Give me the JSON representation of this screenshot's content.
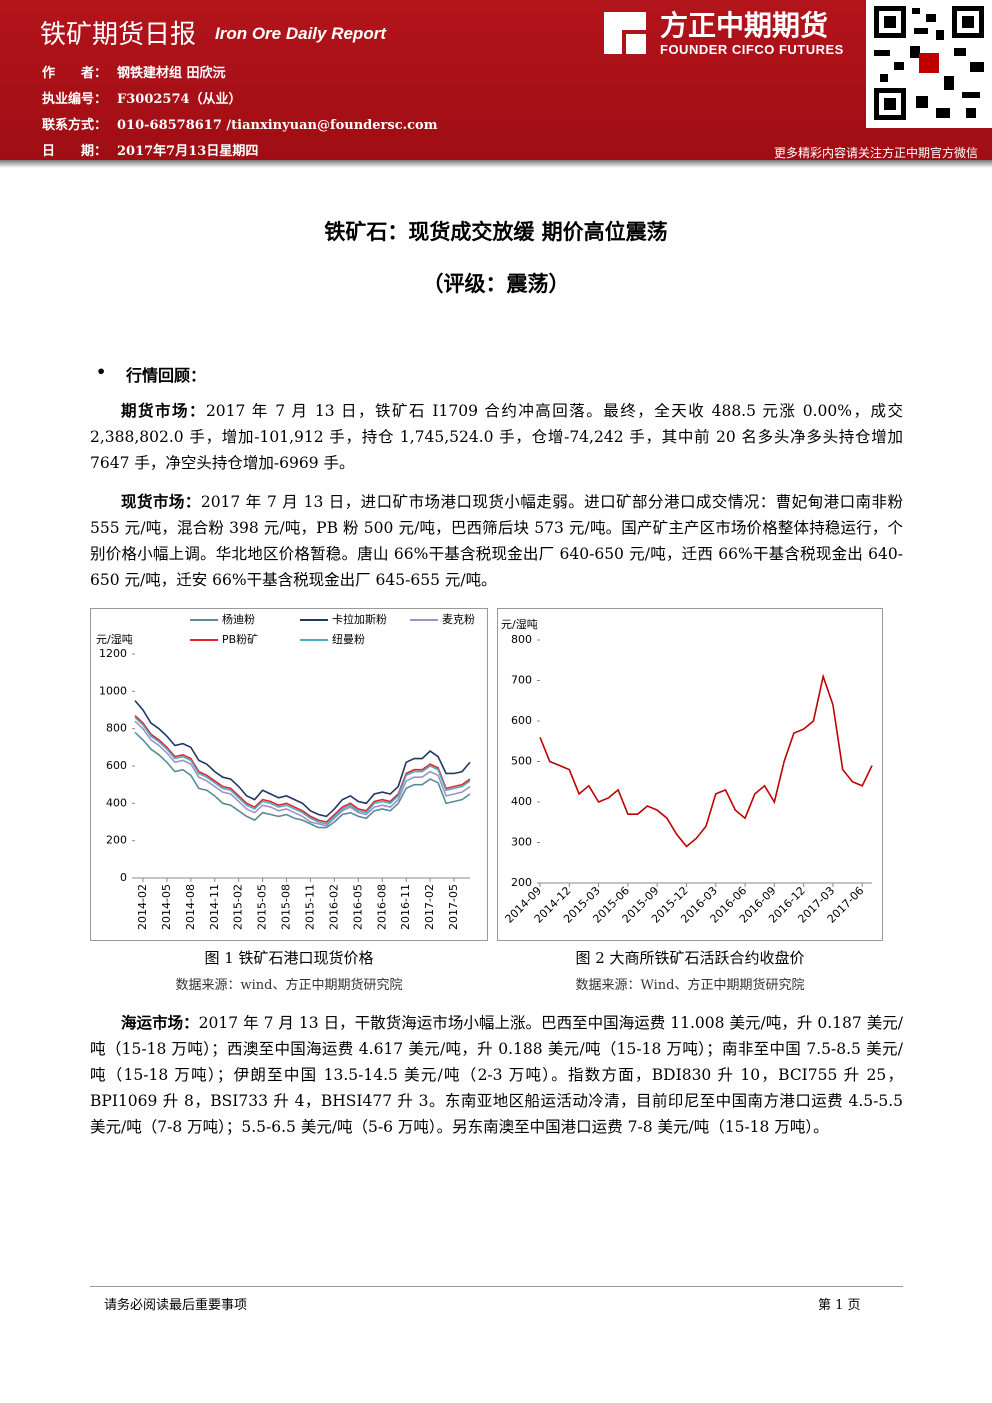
{
  "header": {
    "title": "铁矿期货日报",
    "subtitle": "Iron Ore Daily Report",
    "fields": [
      {
        "label": "作　　者：",
        "value": "钢铁建材组 田欣沅"
      },
      {
        "label": "执业编号：",
        "value": "F3002574（从业）"
      },
      {
        "label": "联系方式：",
        "value": "010-68578617 /tianxinyuan@foundersc.com"
      },
      {
        "label": "日　　期：",
        "value": "2017年7月13日星期四"
      }
    ],
    "logo_cn": "方正中期期货",
    "logo_en": "FOUNDER CIFCO FUTURES",
    "wechat_note": "更多精彩内容请关注方正中期官方微信"
  },
  "body": {
    "title": "铁矿石：现货成交放缓 期价高位震荡",
    "rating": "（评级：震荡）",
    "section": "行情回顾：",
    "paragraphs": [
      {
        "lead": "期货市场：",
        "text": "2017 年 7 月 13 日，铁矿石 I1709 合约冲高回落。最终，全天收 488.5 元涨 0.00%，成交 2,388,802.0 手，增加-101,912 手，持仓 1,745,524.0 手，仓增-74,242 手，其中前 20 名多头净多头持仓增加 7647 手，净空头持仓增加-6969 手。"
      },
      {
        "lead": "现货市场：",
        "text": "2017 年 7 月 13 日，进口矿市场港口现货小幅走弱。进口矿部分港口成交情况：曹妃甸港口南非粉 555 元/吨，混合粉 398 元/吨，PB 粉 500 元/吨，巴西筛后块 573 元/吨。国产矿主产区市场价格整体持稳运行，个别价格小幅上调。华北地区价格暂稳。唐山 66%干基含税现金出厂 640-650 元/吨，迁西 66%干基含税现金出 640-650 元/吨，迁安 66%干基含税现金出厂 645-655 元/吨。"
      },
      {
        "lead": "海运市场：",
        "text": "2017 年 7 月 13 日，干散货海运市场小幅上涨。巴西至中国海运费 11.008 美元/吨，升 0.187 美元/吨（15-18 万吨）；西澳至中国海运费 4.617 美元/吨，升 0.188 美元/吨（15-18 万吨）；南非至中国 7.5-8.5 美元/吨（15-18 万吨）；伊朗至中国 13.5-14.5 美元/吨（2-3 万吨）。指数方面，BDI830 升 10，BCI755 升 25，BPI1069 升 8，BSI733 升 4，BHSI477 升 3。东南亚地区船运活动冷清，目前印尼至中国南方港口运费 4.5-5.5 美元/吨（7-8 万吨）；5.5-6.5 美元/吨（5-6 万吨）。另东南澳至中国港口运费 7-8 美元/吨（15-18 万吨）。"
      }
    ],
    "captions": [
      {
        "title": "图 1 铁矿石港口现货价格",
        "source": "数据来源：wind、方正中期期货研究院"
      },
      {
        "title": "图 2 大商所铁矿石活跃合约收盘价",
        "source": "数据来源：Wind、方正中期期货研究院"
      }
    ]
  },
  "footer": {
    "note": "请务必阅读最后重要事项",
    "page": "第 1 页"
  },
  "chart_data": [
    {
      "type": "line",
      "y_label": "元/湿吨",
      "grid": false,
      "categories": [
        null,
        "2014-02",
        null,
        null,
        "2014-05",
        null,
        null,
        "2014-08",
        null,
        null,
        "2014-11",
        null,
        null,
        "2015-02",
        null,
        null,
        "2015-05",
        null,
        null,
        "2015-08",
        null,
        null,
        "2015-11",
        null,
        null,
        "2016-02",
        null,
        null,
        "2016-05",
        null,
        null,
        "2016-08",
        null,
        null,
        "2016-11",
        null,
        null,
        "2017-02",
        null,
        null,
        "2017-05",
        null,
        null
      ],
      "ylim": [
        0,
        1200
      ],
      "yticks": [
        0,
        200,
        400,
        600,
        800,
        1000,
        1200
      ],
      "series": [
        {
          "name": "杨迪粉",
          "color": "#5a8a9c",
          "values": [
            780,
            740,
            690,
            660,
            620,
            570,
            580,
            550,
            480,
            470,
            440,
            400,
            390,
            360,
            330,
            310,
            350,
            340,
            330,
            340,
            320,
            310,
            290,
            270,
            270,
            300,
            340,
            350,
            330,
            320,
            360,
            370,
            360,
            400,
            480,
            500,
            500,
            530,
            510,
            400,
            410,
            420,
            450
          ]
        },
        {
          "name": "卡拉加斯粉",
          "color": "#1f3864",
          "values": [
            950,
            900,
            830,
            800,
            760,
            710,
            720,
            700,
            630,
            610,
            570,
            540,
            530,
            490,
            440,
            420,
            470,
            450,
            430,
            440,
            420,
            400,
            360,
            340,
            330,
            370,
            420,
            440,
            410,
            400,
            450,
            460,
            450,
            490,
            620,
            640,
            640,
            680,
            650,
            560,
            560,
            570,
            620
          ]
        },
        {
          "name": "麦克粉",
          "color": "#9d93c4",
          "values": [
            840,
            800,
            740,
            710,
            670,
            620,
            630,
            610,
            540,
            520,
            490,
            460,
            450,
            410,
            370,
            350,
            390,
            380,
            360,
            370,
            350,
            330,
            300,
            290,
            280,
            320,
            360,
            380,
            350,
            340,
            380,
            390,
            380,
            420,
            520,
            540,
            540,
            570,
            550,
            440,
            450,
            460,
            490
          ]
        },
        {
          "name": "PB粉矿",
          "color": "#e3262d",
          "values": [
            870,
            830,
            770,
            740,
            700,
            650,
            660,
            640,
            570,
            550,
            520,
            490,
            480,
            440,
            400,
            380,
            420,
            410,
            390,
            400,
            380,
            360,
            330,
            310,
            300,
            340,
            380,
            400,
            370,
            360,
            410,
            420,
            410,
            450,
            560,
            580,
            580,
            610,
            590,
            480,
            490,
            500,
            530
          ]
        },
        {
          "name": "纽曼粉",
          "color": "#4bacc6",
          "values": [
            860,
            820,
            760,
            730,
            690,
            640,
            650,
            630,
            560,
            540,
            510,
            480,
            470,
            430,
            390,
            370,
            410,
            400,
            380,
            390,
            370,
            350,
            320,
            300,
            290,
            330,
            370,
            390,
            360,
            350,
            400,
            410,
            400,
            440,
            550,
            570,
            570,
            600,
            580,
            470,
            480,
            490,
            520
          ]
        }
      ]
    },
    {
      "type": "line",
      "y_label": "元/湿吨",
      "grid": false,
      "categories": [
        "2014-09",
        null,
        null,
        "2014-12",
        null,
        null,
        "2015-03",
        null,
        null,
        "2015-06",
        null,
        null,
        "2015-09",
        null,
        null,
        "2015-12",
        null,
        null,
        "2016-03",
        null,
        null,
        "2016-06",
        null,
        null,
        "2016-09",
        null,
        null,
        "2016-12",
        null,
        null,
        "2017-03",
        null,
        null,
        "2017-06",
        null
      ],
      "ylim": [
        200,
        800
      ],
      "yticks": [
        200,
        300,
        400,
        500,
        600,
        700,
        800
      ],
      "series": [
        {
          "name": null,
          "color": "#c00000",
          "values": [
            560,
            500,
            490,
            480,
            420,
            440,
            400,
            410,
            430,
            370,
            370,
            390,
            380,
            360,
            320,
            290,
            310,
            340,
            420,
            430,
            380,
            360,
            420,
            440,
            400,
            500,
            570,
            580,
            600,
            710,
            640,
            480,
            450,
            440,
            490
          ]
        }
      ]
    }
  ]
}
